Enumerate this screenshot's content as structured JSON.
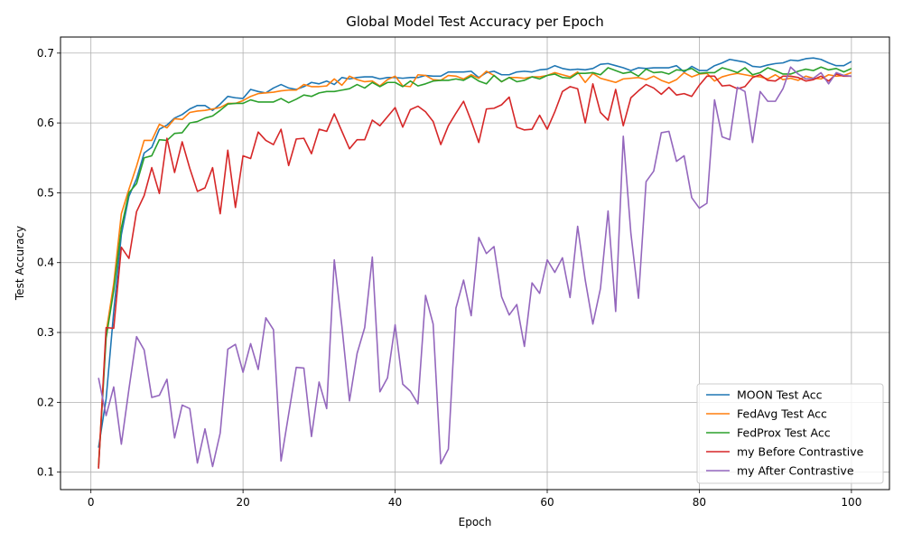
{
  "chart_data": {
    "type": "line",
    "title": "Global Model Test Accuracy per Epoch",
    "xlabel": "Epoch",
    "ylabel": "Test Accuracy",
    "xlim": [
      -4,
      105
    ],
    "ylim": [
      0.075,
      0.723
    ],
    "xticks": [
      0,
      20,
      40,
      60,
      80,
      100
    ],
    "yticks": [
      0.1,
      0.2,
      0.3,
      0.4,
      0.5,
      0.6,
      0.7
    ],
    "grid": true,
    "legend_position": "lower-right",
    "x": [
      1,
      2,
      3,
      4,
      5,
      6,
      7,
      8,
      9,
      10,
      11,
      12,
      13,
      14,
      15,
      16,
      17,
      18,
      19,
      20,
      21,
      22,
      23,
      24,
      25,
      26,
      27,
      28,
      29,
      30,
      31,
      32,
      33,
      34,
      35,
      36,
      37,
      38,
      39,
      40,
      41,
      42,
      43,
      44,
      45,
      46,
      47,
      48,
      49,
      50,
      51,
      52,
      53,
      54,
      55,
      56,
      57,
      58,
      59,
      60,
      61,
      62,
      63,
      64,
      65,
      66,
      67,
      68,
      69,
      70,
      71,
      72,
      73,
      74,
      75,
      76,
      77,
      78,
      79,
      80,
      81,
      82,
      83,
      84,
      85,
      86,
      87,
      88,
      89,
      90,
      91,
      92,
      93,
      94,
      95,
      96,
      97,
      98,
      99,
      100
    ],
    "series": [
      {
        "name": "MOON Test Acc",
        "color": "#1f77b4",
        "values": [
          0.135,
          0.205,
          0.33,
          0.44,
          0.495,
          0.52,
          0.557,
          0.565,
          0.591,
          0.597,
          0.607,
          0.612,
          0.62,
          0.625,
          0.625,
          0.618,
          0.627,
          0.638,
          0.636,
          0.635,
          0.648,
          0.645,
          0.643,
          0.65,
          0.655,
          0.65,
          0.648,
          0.652,
          0.658,
          0.656,
          0.66,
          0.655,
          0.665,
          0.663,
          0.665,
          0.666,
          0.666,
          0.663,
          0.665,
          0.665,
          0.664,
          0.665,
          0.665,
          0.668,
          0.667,
          0.667,
          0.673,
          0.673,
          0.673,
          0.674,
          0.665,
          0.672,
          0.674,
          0.669,
          0.669,
          0.673,
          0.674,
          0.673,
          0.676,
          0.677,
          0.682,
          0.678,
          0.676,
          0.677,
          0.676,
          0.678,
          0.684,
          0.685,
          0.682,
          0.679,
          0.675,
          0.679,
          0.678,
          0.679,
          0.679,
          0.679,
          0.682,
          0.673,
          0.681,
          0.675,
          0.675,
          0.682,
          0.686,
          0.691,
          0.689,
          0.687,
          0.681,
          0.68,
          0.683,
          0.685,
          0.686,
          0.69,
          0.689,
          0.692,
          0.693,
          0.691,
          0.686,
          0.682,
          0.682,
          0.688
        ]
      },
      {
        "name": "FedAvg Test Acc",
        "color": "#ff7f0e",
        "values": [
          0.11,
          0.3,
          0.37,
          0.47,
          0.505,
          0.538,
          0.575,
          0.575,
          0.598,
          0.593,
          0.606,
          0.605,
          0.615,
          0.617,
          0.618,
          0.62,
          0.622,
          0.628,
          0.628,
          0.632,
          0.638,
          0.642,
          0.643,
          0.644,
          0.646,
          0.647,
          0.647,
          0.655,
          0.652,
          0.652,
          0.653,
          0.663,
          0.654,
          0.667,
          0.662,
          0.659,
          0.66,
          0.653,
          0.662,
          0.667,
          0.653,
          0.652,
          0.669,
          0.668,
          0.662,
          0.661,
          0.668,
          0.667,
          0.663,
          0.669,
          0.664,
          0.674,
          0.668,
          0.659,
          0.665,
          0.665,
          0.664,
          0.666,
          0.666,
          0.668,
          0.672,
          0.669,
          0.666,
          0.673,
          0.658,
          0.671,
          0.664,
          0.661,
          0.658,
          0.663,
          0.664,
          0.665,
          0.662,
          0.667,
          0.661,
          0.657,
          0.662,
          0.672,
          0.666,
          0.67,
          0.671,
          0.66,
          0.666,
          0.669,
          0.671,
          0.669,
          0.667,
          0.666,
          0.663,
          0.669,
          0.662,
          0.664,
          0.661,
          0.667,
          0.664,
          0.663,
          0.669,
          0.667,
          0.668,
          0.672
        ]
      },
      {
        "name": "FedProx Test Acc",
        "color": "#2ca02c",
        "values": [
          0.107,
          0.292,
          0.36,
          0.45,
          0.5,
          0.513,
          0.55,
          0.553,
          0.576,
          0.575,
          0.585,
          0.586,
          0.6,
          0.602,
          0.607,
          0.61,
          0.618,
          0.627,
          0.628,
          0.628,
          0.633,
          0.63,
          0.63,
          0.63,
          0.635,
          0.629,
          0.634,
          0.64,
          0.638,
          0.643,
          0.645,
          0.645,
          0.647,
          0.649,
          0.655,
          0.65,
          0.658,
          0.652,
          0.658,
          0.658,
          0.652,
          0.66,
          0.653,
          0.656,
          0.66,
          0.661,
          0.661,
          0.663,
          0.661,
          0.667,
          0.66,
          0.656,
          0.668,
          0.659,
          0.665,
          0.659,
          0.661,
          0.666,
          0.663,
          0.668,
          0.67,
          0.665,
          0.664,
          0.671,
          0.671,
          0.672,
          0.669,
          0.679,
          0.675,
          0.671,
          0.673,
          0.667,
          0.677,
          0.672,
          0.673,
          0.67,
          0.676,
          0.675,
          0.678,
          0.671,
          0.672,
          0.672,
          0.679,
          0.676,
          0.672,
          0.679,
          0.669,
          0.672,
          0.679,
          0.675,
          0.67,
          0.67,
          0.674,
          0.677,
          0.675,
          0.68,
          0.676,
          0.678,
          0.673,
          0.678
        ]
      },
      {
        "name": "my Before Contrastive",
        "color": "#d62728",
        "values": [
          0.105,
          0.307,
          0.306,
          0.422,
          0.406,
          0.473,
          0.496,
          0.536,
          0.499,
          0.578,
          0.529,
          0.573,
          0.535,
          0.502,
          0.507,
          0.536,
          0.47,
          0.561,
          0.479,
          0.553,
          0.549,
          0.587,
          0.575,
          0.569,
          0.591,
          0.539,
          0.577,
          0.578,
          0.556,
          0.591,
          0.588,
          0.613,
          0.588,
          0.563,
          0.576,
          0.576,
          0.604,
          0.596,
          0.609,
          0.622,
          0.594,
          0.619,
          0.624,
          0.616,
          0.602,
          0.569,
          0.596,
          0.614,
          0.631,
          0.603,
          0.572,
          0.62,
          0.621,
          0.626,
          0.637,
          0.594,
          0.59,
          0.591,
          0.611,
          0.591,
          0.616,
          0.645,
          0.652,
          0.649,
          0.6,
          0.656,
          0.615,
          0.604,
          0.648,
          0.596,
          0.636,
          0.646,
          0.655,
          0.65,
          0.641,
          0.651,
          0.64,
          0.642,
          0.638,
          0.654,
          0.667,
          0.667,
          0.653,
          0.654,
          0.649,
          0.652,
          0.665,
          0.669,
          0.661,
          0.66,
          0.667,
          0.667,
          0.665,
          0.66,
          0.662,
          0.667,
          0.66,
          0.67,
          0.667,
          0.667
        ]
      },
      {
        "name": "my After Contrastive",
        "color": "#9467bd",
        "values": [
          0.235,
          0.181,
          0.222,
          0.14,
          0.219,
          0.294,
          0.275,
          0.207,
          0.21,
          0.233,
          0.149,
          0.196,
          0.191,
          0.113,
          0.162,
          0.108,
          0.156,
          0.276,
          0.283,
          0.243,
          0.284,
          0.247,
          0.321,
          0.304,
          0.116,
          0.183,
          0.25,
          0.249,
          0.151,
          0.229,
          0.191,
          0.404,
          0.309,
          0.202,
          0.27,
          0.307,
          0.408,
          0.215,
          0.235,
          0.311,
          0.226,
          0.216,
          0.198,
          0.353,
          0.312,
          0.112,
          0.133,
          0.335,
          0.375,
          0.324,
          0.436,
          0.413,
          0.423,
          0.351,
          0.325,
          0.34,
          0.28,
          0.371,
          0.356,
          0.404,
          0.386,
          0.407,
          0.35,
          0.452,
          0.375,
          0.312,
          0.363,
          0.474,
          0.33,
          0.581,
          0.442,
          0.349,
          0.516,
          0.531,
          0.586,
          0.588,
          0.545,
          0.553,
          0.493,
          0.478,
          0.485,
          0.633,
          0.58,
          0.576,
          0.651,
          0.645,
          0.572,
          0.645,
          0.631,
          0.631,
          0.649,
          0.68,
          0.67,
          0.663,
          0.664,
          0.672,
          0.656,
          0.672,
          0.668,
          0.667
        ]
      }
    ]
  }
}
